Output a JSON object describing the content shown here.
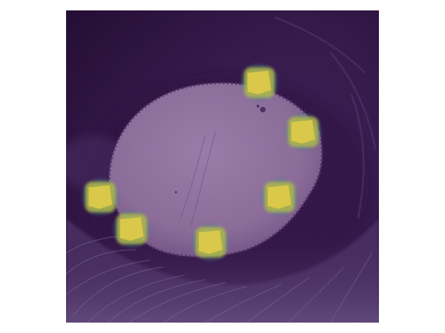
{
  "image": {
    "colormap": "viridis",
    "colors": {
      "background_dark": "#2a0f3d",
      "background_mid": "#3b1c52",
      "pupil": "#8e6e9c",
      "pupil_edge": "#6d4c80",
      "keypoint_core": "#d9c84a",
      "keypoint_mid": "#b3b84c",
      "keypoint_glow": "#2e9c8c"
    },
    "keypoints": [
      {
        "name": "top",
        "u": 0.6178,
        "v": 0.2311
      },
      {
        "name": "upper-right",
        "u": 0.7578,
        "v": 0.3889
      },
      {
        "name": "right",
        "u": 0.6822,
        "v": 0.5978
      },
      {
        "name": "bottom-center",
        "u": 0.4622,
        "v": 0.7422
      },
      {
        "name": "bottom-left",
        "u": 0.21,
        "v": 0.7
      },
      {
        "name": "left",
        "u": 0.11,
        "v": 0.5978
      }
    ]
  }
}
